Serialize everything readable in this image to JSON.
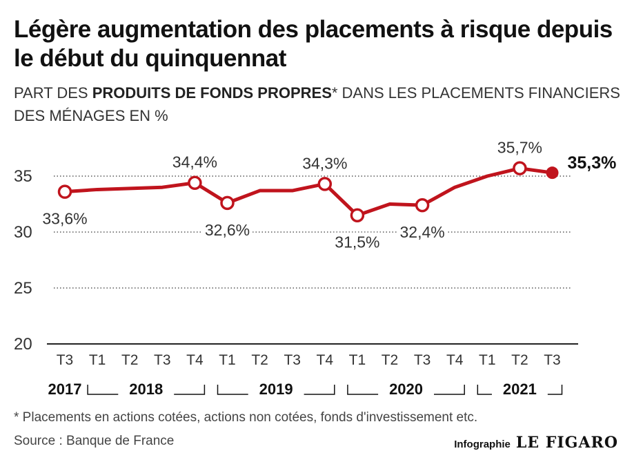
{
  "title": "Légère augmentation des placements à risque depuis le début du quinquennat",
  "subtitle": {
    "before": "PART DES ",
    "bold": "PRODUITS DE FONDS PROPRES",
    "after": "* DANS LES PLACEMENTS FINANCIERS DES MÉNAGES EN %"
  },
  "footnote": "* Placements en actions cotées, actions non cotées, fonds d'investissement etc.",
  "source": "Source : Banque de France",
  "credit": {
    "label": "Infographie",
    "logo": "LE FIGARO"
  },
  "colors": {
    "line": "#c0141d",
    "axis": "#222222",
    "grid": "#555555",
    "text": "#333333"
  },
  "chart_data": {
    "type": "line",
    "categories": [
      "T3",
      "T1",
      "T2",
      "T3",
      "T4",
      "T1",
      "T2",
      "T3",
      "T4",
      "T1",
      "T2",
      "T3",
      "T4",
      "T1",
      "T2",
      "T3"
    ],
    "years": [
      {
        "label": "2017",
        "from": 0,
        "to": 0
      },
      {
        "label": "2018",
        "from": 1,
        "to": 4
      },
      {
        "label": "2019",
        "from": 5,
        "to": 8
      },
      {
        "label": "2020",
        "from": 9,
        "to": 12
      },
      {
        "label": "2021",
        "from": 13,
        "to": 15
      }
    ],
    "values": [
      33.6,
      33.8,
      33.9,
      34.0,
      34.4,
      32.6,
      33.7,
      33.7,
      34.3,
      31.5,
      32.5,
      32.4,
      34.0,
      35.0,
      35.7,
      35.3
    ],
    "labeled_points": [
      {
        "index": 0,
        "label": "33,6%",
        "pos": "below"
      },
      {
        "index": 4,
        "label": "34,4%",
        "pos": "above"
      },
      {
        "index": 5,
        "label": "32,6%",
        "pos": "below"
      },
      {
        "index": 8,
        "label": "34,3%",
        "pos": "above"
      },
      {
        "index": 9,
        "label": "31,5%",
        "pos": "below"
      },
      {
        "index": 11,
        "label": "32,4%",
        "pos": "below"
      },
      {
        "index": 14,
        "label": "35,7%",
        "pos": "above"
      },
      {
        "index": 15,
        "label": "35,3%",
        "pos": "right",
        "emphasis": true
      }
    ],
    "yticks": [
      20,
      25,
      30,
      35
    ],
    "ylim": [
      20,
      38
    ],
    "grid": true
  }
}
